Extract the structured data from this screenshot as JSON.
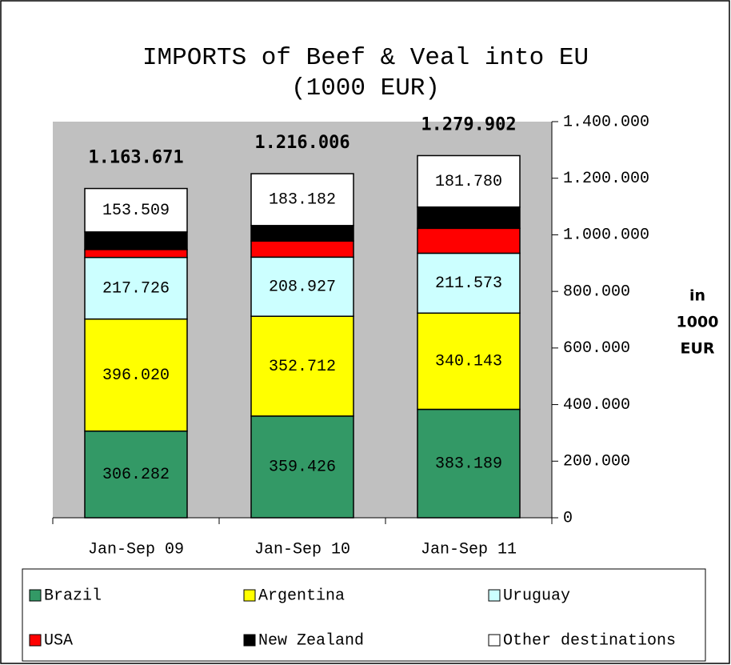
{
  "chart_data": {
    "type": "stacked_bar",
    "title": "IMPORTS of Beef & Veal into EU",
    "subtitle": "(1000 EUR)",
    "y_label_lines": [
      "in",
      "1000",
      "EUR"
    ],
    "categories": [
      "Jan-Sep 09",
      "Jan-Sep 10",
      "Jan-Sep 11"
    ],
    "series": [
      {
        "name": "Brazil",
        "color": "#339966",
        "values": [
          306282,
          359426,
          383189
        ],
        "value_labels": [
          "306.282",
          "359.426",
          "383.189"
        ]
      },
      {
        "name": "Argentina",
        "color": "#ffff00",
        "values": [
          396020,
          352712,
          340143
        ],
        "value_labels": [
          "396.020",
          "352.712",
          "340.143"
        ]
      },
      {
        "name": "Uruguay",
        "color": "#ccffff",
        "values": [
          217726,
          208927,
          211573
        ],
        "value_labels": [
          "217.726",
          "208.927",
          "211.573"
        ]
      },
      {
        "name": "USA",
        "color": "#ff0000",
        "values": [
          28000,
          57000,
          88000
        ]
      },
      {
        "name": "New Zealand",
        "color": "#000000",
        "values": [
          62134,
          54759,
          75217
        ]
      },
      {
        "name": "Other destinations",
        "color": "#ffffff",
        "values": [
          153509,
          183182,
          181780
        ],
        "value_labels": [
          "153.509",
          "183.182",
          "181.780"
        ]
      }
    ],
    "totals": {
      "values": [
        1163671,
        1216006,
        1279902
      ],
      "value_labels": [
        "1.163.671",
        "1.216.006",
        "1.279.902"
      ]
    },
    "ylim": [
      0,
      1400000
    ],
    "yticks": [
      0,
      {
        "value": 200000,
        "label": "200.000"
      },
      {
        "value": 400000,
        "label": "400.000"
      },
      {
        "value": 600000,
        "label": "600.000"
      },
      {
        "value": 800000,
        "label": "800.000"
      },
      {
        "value": 1000000,
        "label": "1.000.000"
      },
      {
        "value": 1200000,
        "label": "1.200.000"
      },
      {
        "value": 1400000,
        "label": "1.400.000"
      }
    ],
    "grid": false,
    "legend": "bottom",
    "plot_background": "#c0c0c0"
  }
}
